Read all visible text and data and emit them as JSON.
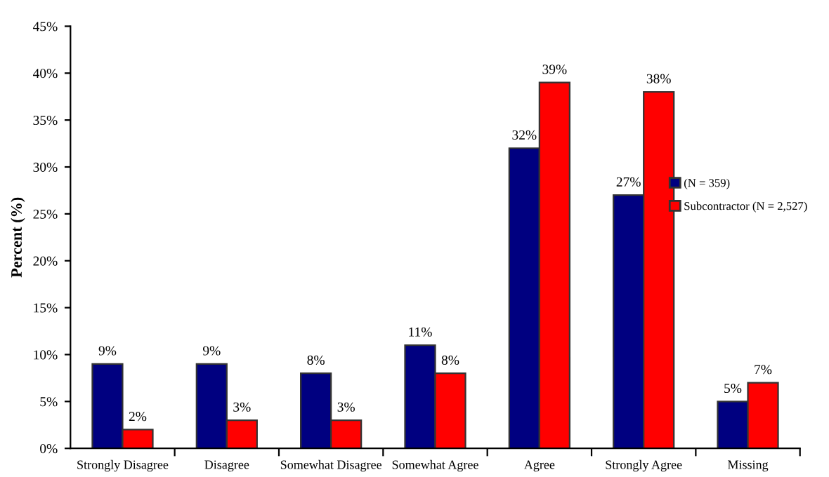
{
  "chart_data": {
    "type": "bar",
    "ylabel": "Percent (%)",
    "categories": [
      "Strongly Disagree",
      "Disagree",
      "Somewhat Disagree",
      "Somewhat Agree",
      "Agree",
      "Strongly Agree",
      "Missing"
    ],
    "series": [
      {
        "name": "(N = 359)",
        "color": "#000080",
        "values": [
          9,
          9,
          8,
          11,
          32,
          27,
          5
        ],
        "value_labels": [
          "9%",
          "9%",
          "8%",
          "11%",
          "32%",
          "27%",
          "5%"
        ]
      },
      {
        "name": "Subcontractor (N = 2,527)",
        "color": "#ff0000",
        "values": [
          2,
          3,
          3,
          8,
          39,
          38,
          7
        ],
        "value_labels": [
          "2%",
          "3%",
          "3%",
          "8%",
          "39%",
          "38%",
          "7%"
        ]
      }
    ],
    "ylim": [
      0,
      45
    ],
    "yticks": [
      {
        "value": 0,
        "label": "0%"
      },
      {
        "value": 5,
        "label": "5%"
      },
      {
        "value": 10,
        "label": "10%"
      },
      {
        "value": 15,
        "label": "15%"
      },
      {
        "value": 20,
        "label": "20%"
      },
      {
        "value": 25,
        "label": "25%"
      },
      {
        "value": 30,
        "label": "30%"
      },
      {
        "value": 35,
        "label": "35%"
      },
      {
        "value": 40,
        "label": "40%"
      },
      {
        "value": 45,
        "label": "45%"
      }
    ],
    "grid": false,
    "legend": "right"
  }
}
